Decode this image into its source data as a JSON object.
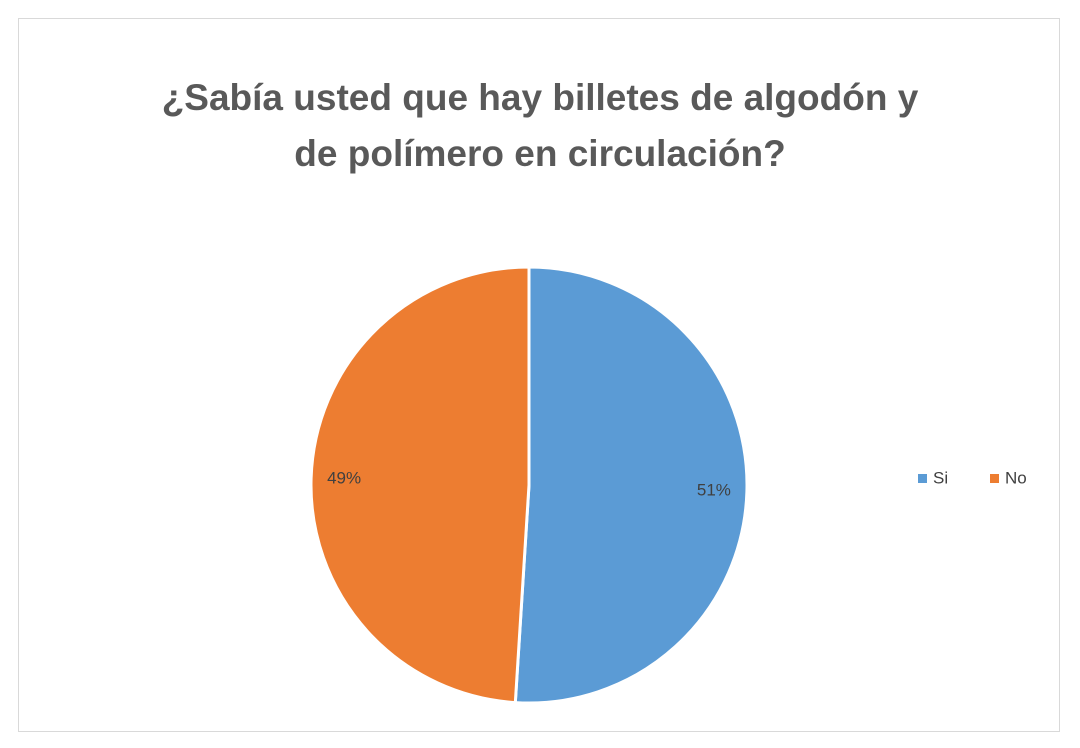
{
  "chart_data": {
    "type": "pie",
    "title": "¿Sabía usted que hay billetes de algodón y de polímero en circulación?",
    "categories": [
      "Si",
      "No"
    ],
    "values": [
      51,
      49
    ],
    "value_labels": [
      "51%",
      "49%"
    ],
    "colors": [
      "#5b9bd5",
      "#ed7d31"
    ],
    "legend": "right"
  }
}
